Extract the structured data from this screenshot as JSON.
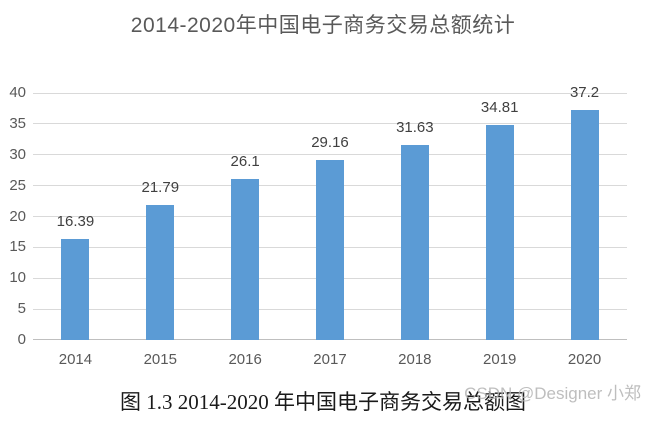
{
  "page": {
    "background_color": "#ffffff"
  },
  "chart_data": {
    "type": "bar",
    "title": "2014-2020年中国电子商务交易总额统计",
    "categories": [
      "2014",
      "2015",
      "2016",
      "2017",
      "2018",
      "2019",
      "2020"
    ],
    "values": [
      16.39,
      21.79,
      26.1,
      29.16,
      31.63,
      34.81,
      37.2
    ],
    "data_labels": [
      "16.39",
      "21.79",
      "26.1",
      "29.16",
      "31.63",
      "34.81",
      "37.2"
    ],
    "xlabel": "",
    "ylabel": "",
    "ylim": [
      0,
      40
    ],
    "yticks": [
      0,
      5,
      10,
      15,
      20,
      25,
      30,
      35,
      40
    ],
    "grid": true,
    "legend": "none",
    "colors": {
      "bar": "#5B9BD5",
      "gridline": "#D9D9D9",
      "axis_line": "#BFBFBF",
      "title_text": "#595959",
      "tick_label_text": "#595959",
      "data_label_text": "#404040"
    }
  },
  "caption": {
    "text": "图 1.3 2014-2020 年中国电子商务交易总额图"
  },
  "watermark": {
    "text": "CSDN @Designer 小郑",
    "color": "#b3b3b3"
  }
}
